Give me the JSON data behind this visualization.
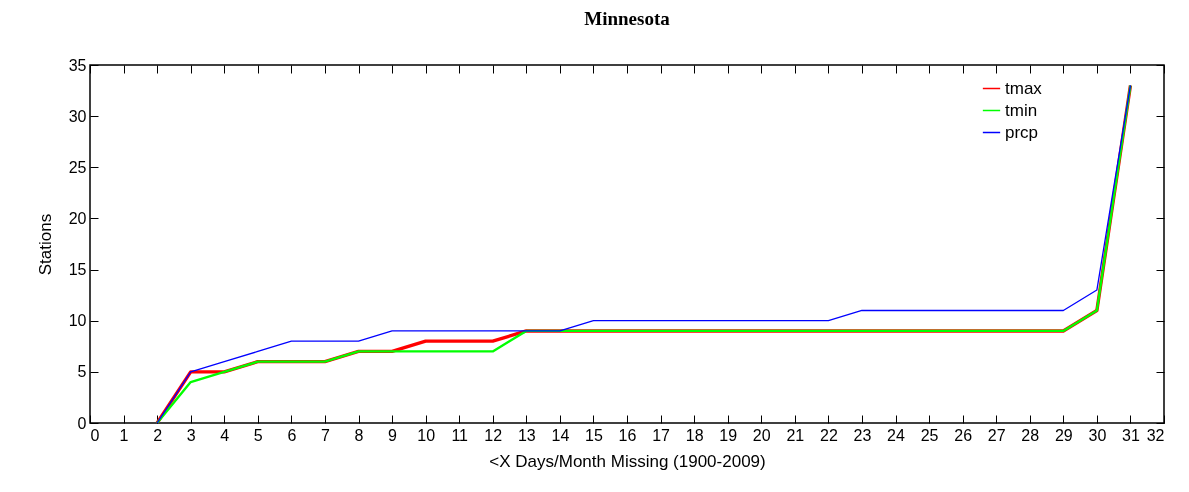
{
  "chart_data": {
    "type": "line",
    "title": "Minnesota",
    "xlabel": "<X Days/Month Missing (1900-2009)",
    "ylabel": "Stations",
    "x": [
      2,
      3,
      4,
      5,
      6,
      7,
      8,
      9,
      10,
      11,
      12,
      13,
      14,
      15,
      16,
      17,
      18,
      19,
      20,
      21,
      22,
      23,
      24,
      25,
      26,
      27,
      28,
      29,
      30,
      31
    ],
    "series": [
      {
        "name": "tmax",
        "color": "#ff0000",
        "values": [
          0,
          5,
          5,
          6,
          6,
          6,
          7,
          7,
          8,
          8,
          8,
          9,
          9,
          9,
          9,
          9,
          9,
          9,
          9,
          9,
          9,
          9,
          9,
          9,
          9,
          9,
          9,
          9,
          11,
          33
        ]
      },
      {
        "name": "tmin",
        "color": "#00ff00",
        "values": [
          0,
          4,
          5,
          6,
          6,
          6,
          7,
          7,
          7,
          7,
          7,
          9,
          9,
          9,
          9,
          9,
          9,
          9,
          9,
          9,
          9,
          9,
          9,
          9,
          9,
          9,
          9,
          9,
          11,
          33
        ]
      },
      {
        "name": "prcp",
        "color": "#0000ff",
        "values": [
          0,
          5,
          6,
          7,
          8,
          8,
          8,
          9,
          9,
          9,
          9,
          9,
          9,
          10,
          10,
          10,
          10,
          10,
          10,
          10,
          10,
          11,
          11,
          11,
          11,
          11,
          11,
          11,
          13,
          33
        ]
      }
    ],
    "xlim": [
      0,
      32
    ],
    "xticks": [
      0,
      1,
      2,
      3,
      4,
      5,
      6,
      7,
      8,
      9,
      10,
      11,
      12,
      13,
      14,
      15,
      16,
      17,
      18,
      19,
      20,
      21,
      22,
      23,
      24,
      25,
      26,
      27,
      28,
      29,
      30,
      31,
      32
    ],
    "ylim": [
      0,
      35
    ],
    "yticks": [
      0,
      5,
      10,
      15,
      20,
      25,
      30,
      35
    ],
    "grid": false,
    "legend": "top right",
    "marker": "none",
    "line_style": "solid"
  }
}
